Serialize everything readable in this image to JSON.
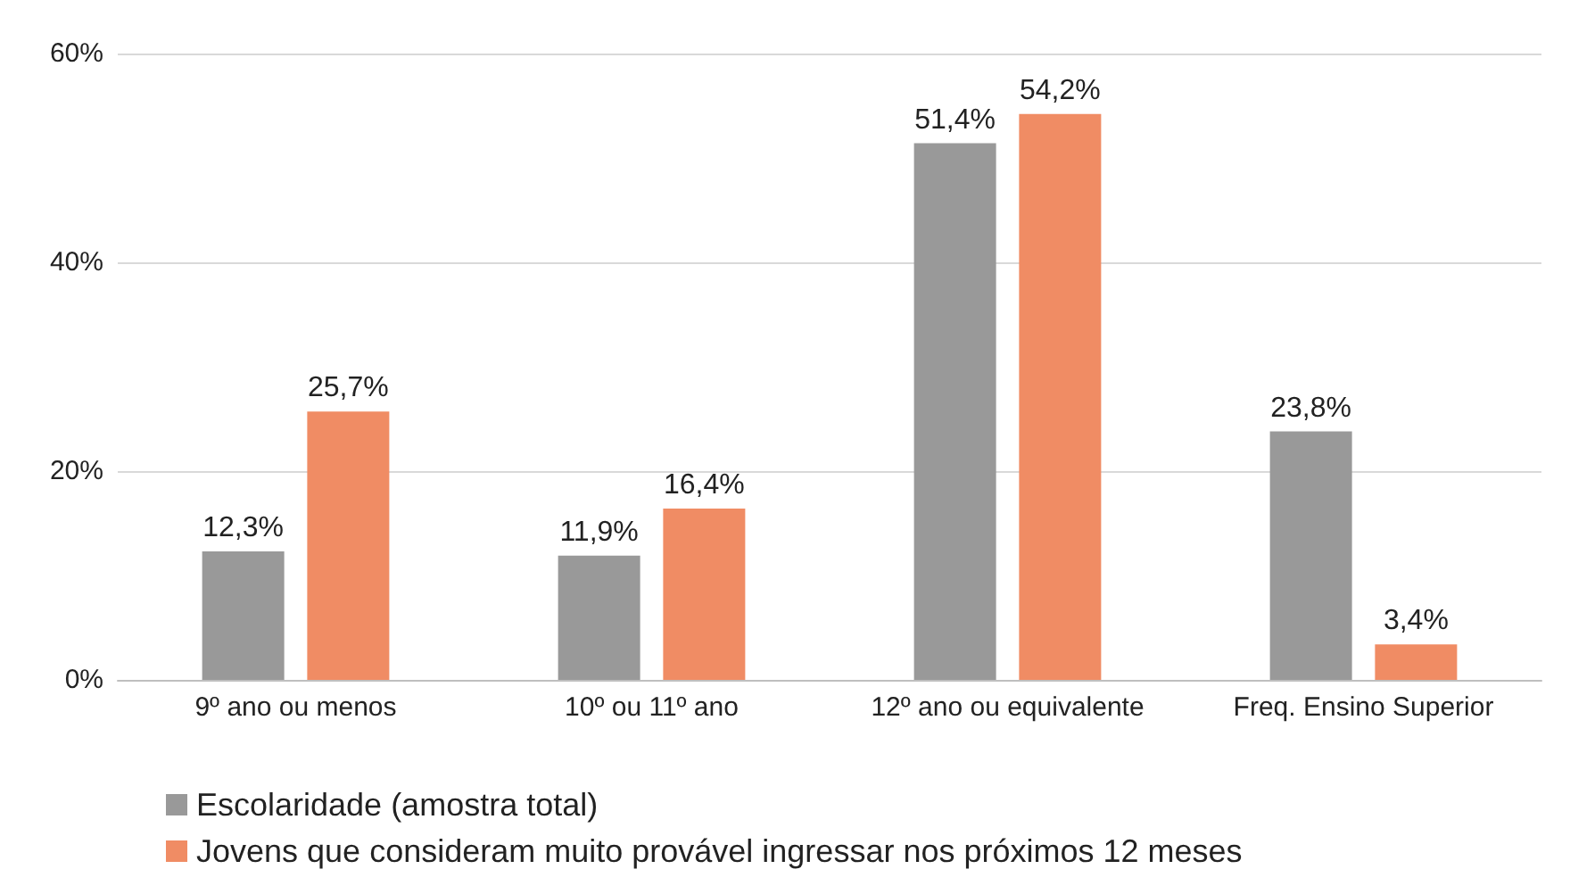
{
  "chart_data": {
    "type": "bar",
    "categories": [
      "9º ano ou menos",
      "10º ou 11º ano",
      "12º ano ou equivalente",
      "Freq. Ensino Superior"
    ],
    "series": [
      {
        "name": "Escolaridade (amostra total)",
        "color": "#999999",
        "values": [
          12.3,
          11.9,
          51.4,
          23.8
        ],
        "value_labels": [
          "12,3%",
          "11,9%",
          "51,4%",
          "23,8%"
        ]
      },
      {
        "name": "Jovens que consideram muito provável ingressar nos próximos 12 meses",
        "color": "#f08c64",
        "values": [
          25.7,
          16.4,
          54.2,
          3.4
        ],
        "value_labels": [
          "25,7%",
          "16,4%",
          "54,2%",
          "3,4%"
        ]
      }
    ],
    "ylim": [
      0,
      60
    ],
    "yticks": [
      {
        "value": 0,
        "label": "0%"
      },
      {
        "value": 20,
        "label": "20%"
      },
      {
        "value": 40,
        "label": "40%"
      },
      {
        "value": 60,
        "label": "60%"
      }
    ],
    "grid": "y",
    "legend": "bottom left"
  }
}
